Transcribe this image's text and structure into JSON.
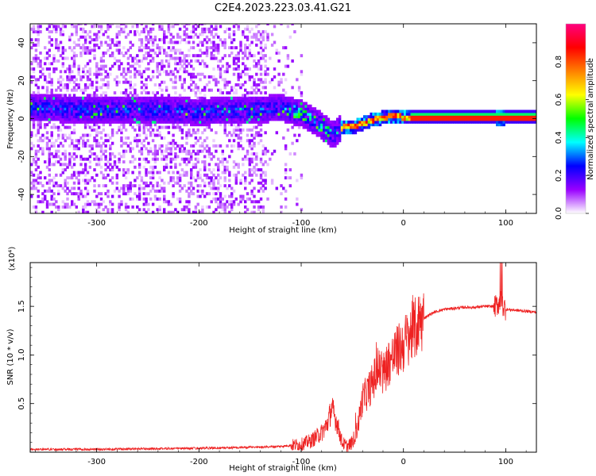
{
  "title": "C2E4.2023.223.03.41.G21",
  "chart_data": [
    {
      "type": "heatmap",
      "xlabel": "Height of straight line (km)",
      "ylabel": "Frequency (Hz)",
      "xlim": [
        -365,
        130
      ],
      "ylim": [
        -50,
        50
      ],
      "x_ticks": [
        -300,
        -200,
        -100,
        0,
        100
      ],
      "y_ticks": [
        -40,
        -20,
        0,
        20,
        40
      ],
      "colorbar": {
        "label": "Normalized spectral amplitude",
        "range": [
          0,
          1
        ],
        "ticks": [
          "0.0",
          "0.2",
          "0.4",
          "0.6",
          "0.8"
        ],
        "colors": [
          "#ffffff",
          "#9900ff",
          "#0000ff",
          "#00ffff",
          "#00ff00",
          "#ffff00",
          "#ff8000",
          "#ff0000",
          "#ff0080"
        ]
      },
      "ridge": {
        "x": [
          -360,
          -300,
          -250,
          -200,
          -150,
          -120,
          -100,
          -85,
          -70,
          -60,
          -50,
          -40,
          -30,
          -20,
          -10,
          0,
          130
        ],
        "y": [
          5,
          4,
          4,
          3,
          4,
          5,
          2,
          -3,
          -9,
          -5,
          -5,
          -3,
          -1,
          0,
          1,
          0,
          0
        ]
      },
      "grid": false
    },
    {
      "type": "line",
      "xlabel": "Height of straight line (km)",
      "ylabel": "SNR (10 * v/v)",
      "y_multiplier": "(x10⁴)",
      "xlim": [
        -365,
        130
      ],
      "ylim": [
        0,
        1.95
      ],
      "x_ticks": [
        -300,
        -200,
        -100,
        0,
        100
      ],
      "y_ticks": [
        0.5,
        1.0,
        1.5
      ],
      "color": "#ee2222",
      "x": [
        -365,
        -300,
        -200,
        -150,
        -120,
        -100,
        -90,
        -80,
        -75,
        -70,
        -65,
        -60,
        -55,
        -50,
        -45,
        -40,
        -35,
        -30,
        -25,
        -20,
        -15,
        -10,
        -5,
        0,
        5,
        10,
        20,
        30,
        40,
        50,
        60,
        70,
        80,
        90,
        95,
        100,
        110,
        120,
        130
      ],
      "y": [
        0.03,
        0.03,
        0.04,
        0.05,
        0.06,
        0.08,
        0.12,
        0.2,
        0.28,
        0.45,
        0.3,
        0.1,
        0.06,
        0.1,
        0.25,
        0.55,
        0.62,
        0.72,
        0.85,
        0.8,
        0.92,
        0.98,
        1.05,
        1.1,
        1.2,
        1.25,
        1.38,
        1.44,
        1.47,
        1.48,
        1.49,
        1.49,
        1.5,
        1.5,
        1.55,
        1.47,
        1.46,
        1.45,
        1.44
      ]
    }
  ]
}
